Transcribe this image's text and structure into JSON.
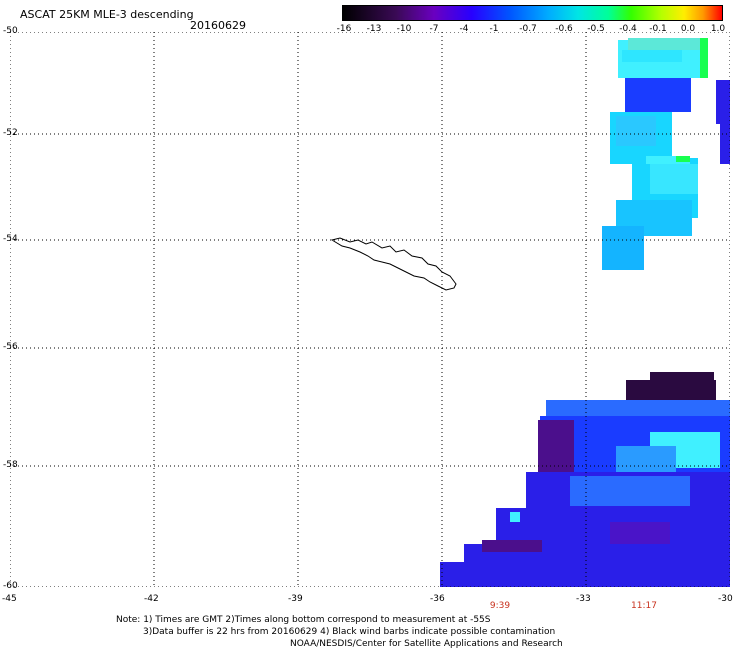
{
  "header": {
    "title": "ASCAT 25KM MLE-3 descending",
    "date": "20160629"
  },
  "colorbar": {
    "labels": [
      "-16",
      "-13",
      "-10",
      "-7",
      "-4",
      "-1",
      "-0.7",
      "-0.6",
      "-0.5",
      "-0.4",
      "-0.1",
      "0.0",
      "1.0"
    ],
    "colors": [
      "#000000",
      "#3a0a55",
      "#6a00c0",
      "#2800ff",
      "#0055ff",
      "#00aaff",
      "#00e5e5",
      "#00ff99",
      "#33ff00",
      "#b5ff00",
      "#ffee00",
      "#ff9900",
      "#ff0000"
    ]
  },
  "map": {
    "lat_labels": [
      "-50",
      "-52",
      "-54",
      "-56",
      "-58",
      "-60"
    ],
    "lon_labels": [
      "-45",
      "-42",
      "-39",
      "-36",
      "-33",
      "-30"
    ],
    "time_labels": [
      "9:39",
      "11:17"
    ],
    "colors": {
      "purple_dark": "#2a0a40",
      "purple": "#4b0f8c",
      "violet": "#4a14c8",
      "blue": "#2a1fe8",
      "blue_mid": "#1a3cff",
      "blue_light": "#2a6bff",
      "cyan": "#18d6ff",
      "cyan_light": "#40f0ff",
      "sky": "#14b4ff",
      "green": "#18ff50"
    }
  },
  "notes": {
    "line1": "Note: 1) Times are GMT 2)Times along bottom correspond to measurement at -55S",
    "line2": "3)Data buffer is 22 hrs from 20160629 4) Black wind barbs indicate possible contamination",
    "line3": "NOAA/NESDIS/Center for Satellite Applications and Research"
  }
}
